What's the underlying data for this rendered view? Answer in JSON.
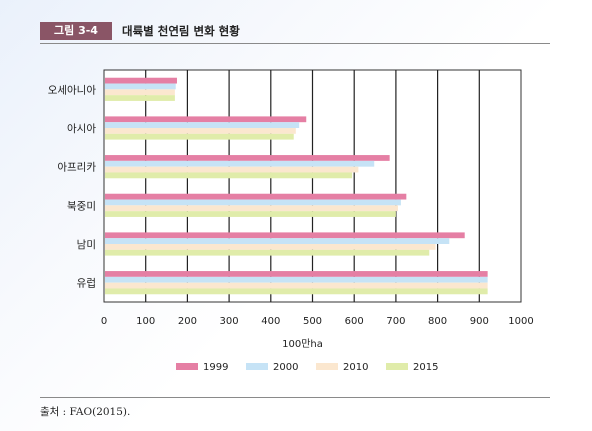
{
  "figure": {
    "label": "그림 3-4",
    "title": "대륙별 천연림 변화 현황"
  },
  "source": "출처 : FAO(2015).",
  "colors": {
    "badge": "#8a5566",
    "series": [
      "#e57fa4",
      "#c6e3f6",
      "#fbe7cf",
      "#e0ecaa"
    ]
  },
  "chart_data": {
    "type": "bar",
    "orientation": "horizontal",
    "categories": [
      "오세아니아",
      "아시아",
      "아프리카",
      "북중미",
      "남미",
      "유럽"
    ],
    "xlabel": "100만ha",
    "xlim": [
      0,
      1000
    ],
    "xticks": [
      0,
      100,
      200,
      300,
      400,
      500,
      600,
      700,
      800,
      900,
      1000
    ],
    "grid": "vertical",
    "legend_position": "bottom",
    "series": [
      {
        "name": "1999",
        "values": [
          175,
          485,
          685,
          725,
          865,
          920
        ]
      },
      {
        "name": "2000",
        "values": [
          172,
          468,
          648,
          712,
          828,
          920
        ]
      },
      {
        "name": "2010",
        "values": [
          170,
          460,
          610,
          705,
          795,
          920
        ]
      },
      {
        "name": "2015",
        "values": [
          170,
          455,
          595,
          700,
          780,
          920
        ]
      }
    ]
  }
}
